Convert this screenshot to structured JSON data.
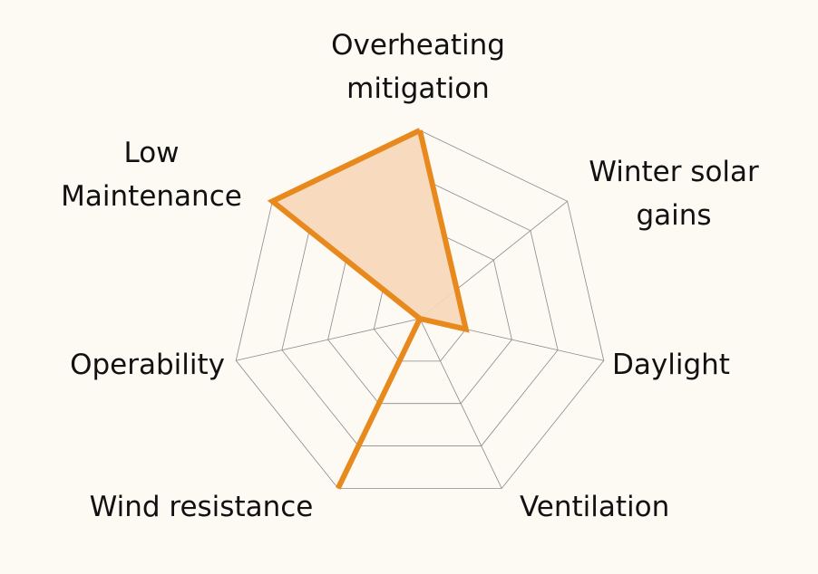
{
  "chart_data": {
    "type": "radar",
    "categories": [
      "Overheating mitigation",
      "Winter solar gains",
      "Daylight",
      "Ventilation",
      "Wind resistance",
      "Operability",
      "Low Maintenance"
    ],
    "label_lines": [
      [
        "Overheating",
        "mitigation"
      ],
      [
        "Winter solar",
        "gains"
      ],
      [
        "Daylight"
      ],
      [
        "Ventilation"
      ],
      [
        "Wind resistance"
      ],
      [
        "Operability"
      ],
      [
        "Low",
        "Maintenance"
      ]
    ],
    "rlim": [
      0,
      4
    ],
    "grid_levels": [
      1,
      2,
      3,
      4
    ],
    "grid": true,
    "series": [
      {
        "values": [
          4,
          1,
          1,
          0,
          4,
          0,
          4
        ],
        "filled_segments": [
          [
            6,
            0
          ],
          [
            0,
            1
          ],
          [
            1,
            2
          ]
        ],
        "color": "#e8891e",
        "fill": "#f8dbbf"
      }
    ],
    "axis_color": "#8a8a8a",
    "background": "#fdf9f3"
  }
}
